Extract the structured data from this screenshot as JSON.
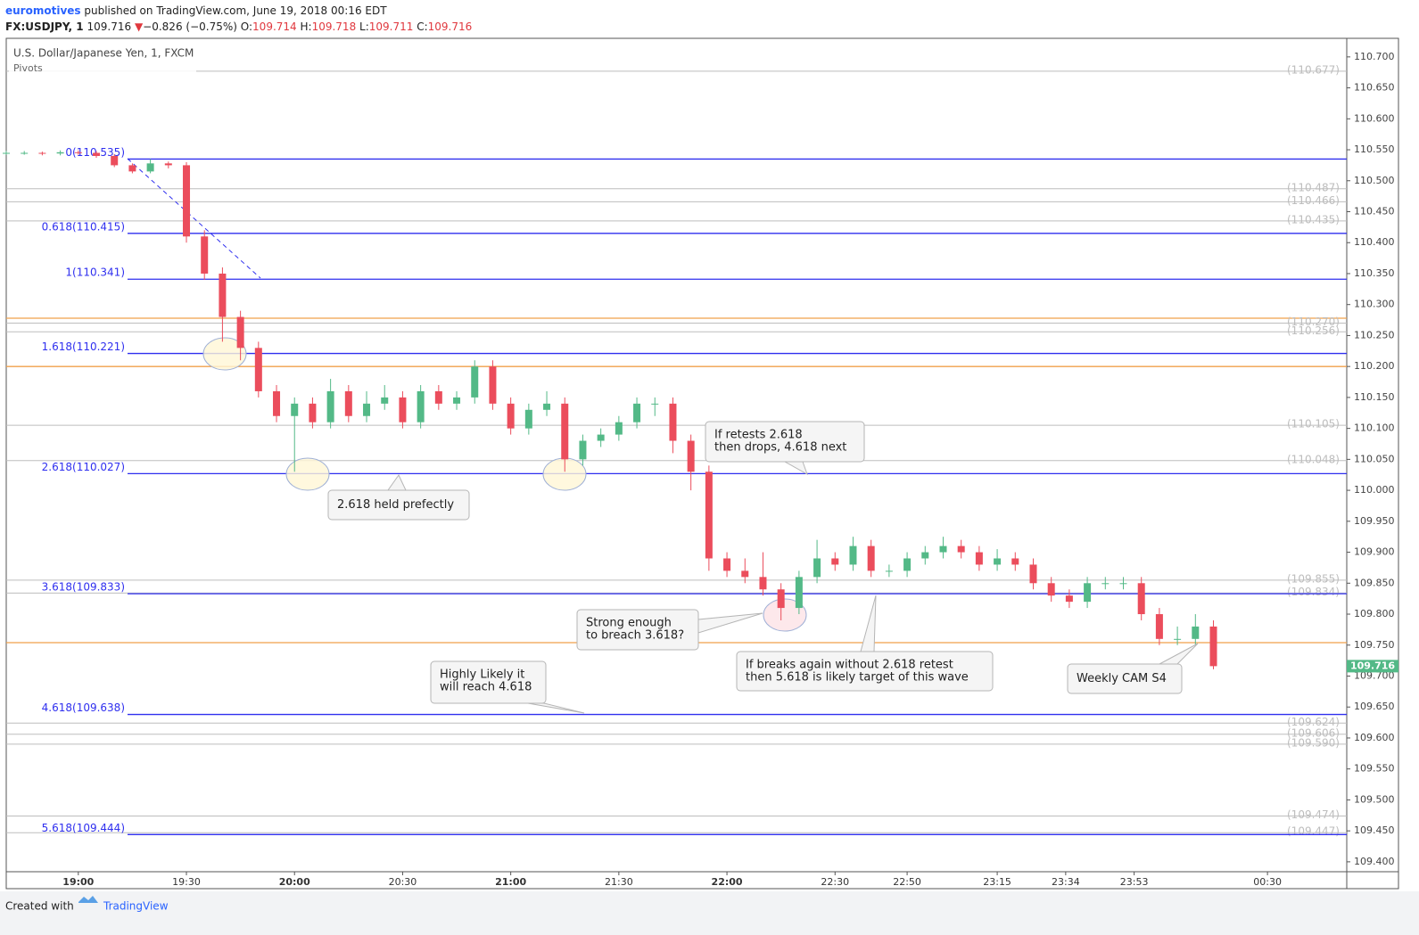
{
  "header": {
    "author": "euromotives",
    "published": "published on TradingView.com, June 19, 2018 00:16 EDT",
    "symbol": "FX:USDJPY, 1",
    "last": "109.716",
    "arrow": "▼",
    "change": "−0.826 (−0.75%)",
    "ohlc": [
      {
        "label": "O:",
        "value": "109.714"
      },
      {
        "label": "H:",
        "value": "109.718"
      },
      {
        "label": "L:",
        "value": "109.711"
      },
      {
        "label": "C:",
        "value": "109.716"
      }
    ]
  },
  "chart_data": {
    "type": "candlestick",
    "title": "U.S. Dollar/Japanese Yen, 1, FXCM",
    "subtitle": "Pivots",
    "x": [
      "18:40",
      "18:45",
      "18:50",
      "18:55",
      "19:00",
      "19:05",
      "19:10",
      "19:15",
      "19:20",
      "19:25",
      "19:30",
      "19:35",
      "19:40",
      "19:45",
      "19:50",
      "19:55",
      "20:00",
      "20:05",
      "20:10",
      "20:15",
      "20:20",
      "20:25",
      "20:30",
      "20:35",
      "20:40",
      "20:45",
      "20:50",
      "20:55",
      "21:00",
      "21:05",
      "21:10",
      "21:15",
      "21:20",
      "21:25",
      "21:30",
      "21:35",
      "21:40",
      "21:45",
      "21:50",
      "21:55",
      "22:00",
      "22:05",
      "22:10",
      "22:15",
      "22:20",
      "22:25",
      "22:30",
      "22:35",
      "22:40",
      "22:45",
      "22:50",
      "22:55",
      "23:00",
      "23:05",
      "23:10",
      "23:15",
      "23:20",
      "23:25",
      "23:30",
      "23:35",
      "23:40",
      "23:45",
      "23:50",
      "23:55",
      "00:00",
      "00:05",
      "00:10",
      "00:15"
    ],
    "open": [
      110.545,
      110.545,
      110.545,
      110.544,
      110.546,
      110.545,
      110.54,
      110.525,
      110.515,
      110.528,
      110.525,
      110.41,
      110.35,
      110.28,
      110.23,
      110.16,
      110.12,
      110.14,
      110.11,
      110.16,
      110.12,
      110.14,
      110.15,
      110.11,
      110.16,
      110.14,
      110.15,
      110.2,
      110.14,
      110.1,
      110.13,
      110.14,
      110.05,
      110.08,
      110.09,
      110.11,
      110.14,
      110.14,
      110.08,
      110.03,
      109.89,
      109.87,
      109.86,
      109.84,
      109.81,
      109.86,
      109.89,
      109.88,
      109.91,
      109.87,
      109.87,
      109.89,
      109.9,
      109.91,
      109.9,
      109.88,
      109.89,
      109.88,
      109.85,
      109.83,
      109.82,
      109.85,
      109.85,
      109.85,
      109.8,
      109.76,
      109.76,
      109.78
    ],
    "high": [
      110.548,
      110.548,
      110.547,
      110.549,
      110.549,
      110.548,
      110.543,
      110.528,
      110.535,
      110.531,
      110.53,
      110.42,
      110.36,
      110.29,
      110.24,
      110.17,
      110.15,
      110.15,
      110.18,
      110.17,
      110.16,
      110.17,
      110.16,
      110.17,
      110.17,
      110.16,
      110.21,
      110.21,
      110.15,
      110.14,
      110.16,
      110.15,
      110.09,
      110.1,
      110.12,
      110.15,
      110.15,
      110.15,
      110.09,
      110.04,
      109.9,
      109.89,
      109.9,
      109.85,
      109.87,
      109.92,
      109.9,
      109.925,
      109.92,
      109.88,
      109.9,
      109.91,
      109.925,
      109.92,
      109.91,
      109.905,
      109.9,
      109.89,
      109.86,
      109.84,
      109.86,
      109.86,
      109.86,
      109.86,
      109.81,
      109.78,
      109.8,
      109.79
    ],
    "low": [
      110.542,
      110.542,
      110.541,
      110.541,
      110.542,
      110.537,
      110.522,
      110.512,
      110.512,
      110.52,
      110.4,
      110.34,
      110.24,
      110.21,
      110.15,
      110.11,
      110.03,
      110.1,
      110.1,
      110.11,
      110.11,
      110.13,
      110.1,
      110.1,
      110.13,
      110.13,
      110.14,
      110.13,
      110.09,
      110.09,
      110.12,
      110.03,
      110.04,
      110.07,
      110.08,
      110.1,
      110.12,
      110.06,
      110.0,
      109.87,
      109.86,
      109.85,
      109.83,
      109.79,
      109.8,
      109.85,
      109.87,
      109.87,
      109.86,
      109.86,
      109.86,
      109.88,
      109.89,
      109.89,
      109.87,
      109.87,
      109.87,
      109.84,
      109.82,
      109.81,
      109.81,
      109.84,
      109.84,
      109.79,
      109.75,
      109.75,
      109.75,
      109.711
    ],
    "close": [
      110.545,
      110.545,
      110.544,
      110.546,
      110.545,
      110.54,
      110.525,
      110.515,
      110.528,
      110.525,
      110.41,
      110.35,
      110.28,
      110.23,
      110.16,
      110.12,
      110.14,
      110.11,
      110.16,
      110.12,
      110.14,
      110.15,
      110.11,
      110.16,
      110.14,
      110.15,
      110.2,
      110.14,
      110.1,
      110.13,
      110.14,
      110.05,
      110.08,
      110.09,
      110.11,
      110.14,
      110.14,
      110.08,
      110.03,
      109.89,
      109.87,
      109.86,
      109.84,
      109.81,
      109.86,
      109.89,
      109.88,
      109.91,
      109.87,
      109.87,
      109.89,
      109.9,
      109.91,
      109.9,
      109.88,
      109.89,
      109.88,
      109.85,
      109.83,
      109.82,
      109.85,
      109.85,
      109.85,
      109.8,
      109.76,
      109.76,
      109.78,
      109.716
    ],
    "up_color": "#53b987",
    "down_color": "#eb4d5c",
    "xlim": [
      "18:40",
      "00:52"
    ],
    "xticks": [
      "19:00",
      "19:30",
      "20:00",
      "20:30",
      "21:00",
      "21:30",
      "22:00",
      "22:30",
      "22:50",
      "23:15",
      "23:34",
      "23:53",
      "00:30"
    ],
    "ylim": [
      109.384,
      110.73
    ],
    "yticks": [
      {
        "value": 110.7,
        "label": "110.700"
      },
      {
        "value": 110.65,
        "label": "110.650"
      },
      {
        "value": 110.6,
        "label": "110.600"
      },
      {
        "value": 110.55,
        "label": "110.550"
      },
      {
        "value": 110.5,
        "label": "110.500"
      },
      {
        "value": 110.45,
        "label": "110.450"
      },
      {
        "value": 110.4,
        "label": "110.400"
      },
      {
        "value": 110.35,
        "label": "110.350"
      },
      {
        "value": 110.3,
        "label": "110.300"
      },
      {
        "value": 110.25,
        "label": "110.250"
      },
      {
        "value": 110.2,
        "label": "110.200"
      },
      {
        "value": 110.15,
        "label": "110.150"
      },
      {
        "value": 110.1,
        "label": "110.100"
      },
      {
        "value": 110.05,
        "label": "110.050"
      },
      {
        "value": 110,
        "label": "110.000"
      },
      {
        "value": 109.95,
        "label": "109.950"
      },
      {
        "value": 109.9,
        "label": "109.900"
      },
      {
        "value": 109.85,
        "label": "109.850"
      },
      {
        "value": 109.8,
        "label": "109.800"
      },
      {
        "value": 109.75,
        "label": "109.750"
      },
      {
        "value": 109.7,
        "label": "109.700"
      },
      {
        "value": 109.65,
        "label": "109.650"
      },
      {
        "value": 109.6,
        "label": "109.600"
      },
      {
        "value": 109.55,
        "label": "109.550"
      },
      {
        "value": 109.5,
        "label": "109.500"
      },
      {
        "value": 109.45,
        "label": "109.450"
      },
      {
        "value": 109.4,
        "label": "109.400"
      }
    ],
    "last_price": 109.716,
    "last_price_color": "#53b987",
    "fib_color": "#2f2fef",
    "fib_levels": [
      {
        "value": 110.535,
        "label": "0(110.535)"
      },
      {
        "value": 110.415,
        "label": "0.618(110.415)"
      },
      {
        "value": 110.341,
        "label": "1(110.341)"
      },
      {
        "value": 110.221,
        "label": "1.618(110.221)"
      },
      {
        "value": 110.027,
        "label": "2.618(110.027)"
      },
      {
        "value": 109.833,
        "label": "3.618(109.833)"
      },
      {
        "value": 109.638,
        "label": "4.618(109.638)"
      },
      {
        "value": 109.444,
        "label": "5.618(109.444)"
      }
    ],
    "pivot_color": "#bdbdbd",
    "pivots": [
      {
        "value": 110.677,
        "label": "(110.677)"
      },
      {
        "value": 110.487,
        "label": "(110.487)"
      },
      {
        "value": 110.466,
        "label": "(110.466)"
      },
      {
        "value": 110.435,
        "label": "(110.435)"
      },
      {
        "value": 110.27,
        "label": "(110.270)"
      },
      {
        "value": 110.256,
        "label": "(110.256)"
      },
      {
        "value": 110.105,
        "label": "(110.105)"
      },
      {
        "value": 110.048,
        "label": "(110.048)"
      },
      {
        "value": 109.855,
        "label": "(109.855)"
      },
      {
        "value": 109.834,
        "label": "(109.834)"
      },
      {
        "value": 109.624,
        "label": "(109.624)"
      },
      {
        "value": 109.606,
        "label": "(109.606)"
      },
      {
        "value": 109.59,
        "label": "(109.590)"
      },
      {
        "value": 109.474,
        "label": "(109.474)"
      },
      {
        "value": 109.447,
        "label": "(109.447)"
      }
    ],
    "orange_color": "#f0a04b",
    "orange_lines": [
      110.278,
      110.2,
      109.754
    ],
    "annotations": [
      {
        "lines": [
          "2.618 held prefectly"
        ]
      },
      {
        "lines": [
          "If retests 2.618",
          "then drops, 4.618 next"
        ]
      },
      {
        "lines": [
          "Strong enough",
          "to breach 3.618?"
        ]
      },
      {
        "lines": [
          "If breaks again  without 2.618 retest",
          "then 5.618 is likely target of this wave"
        ]
      },
      {
        "lines": [
          "Highly Likely it",
          "will reach 4.618"
        ]
      },
      {
        "lines": [
          "Weekly CAM S4"
        ]
      }
    ]
  },
  "footer": {
    "text": "Created with",
    "brand": "TradingView"
  }
}
